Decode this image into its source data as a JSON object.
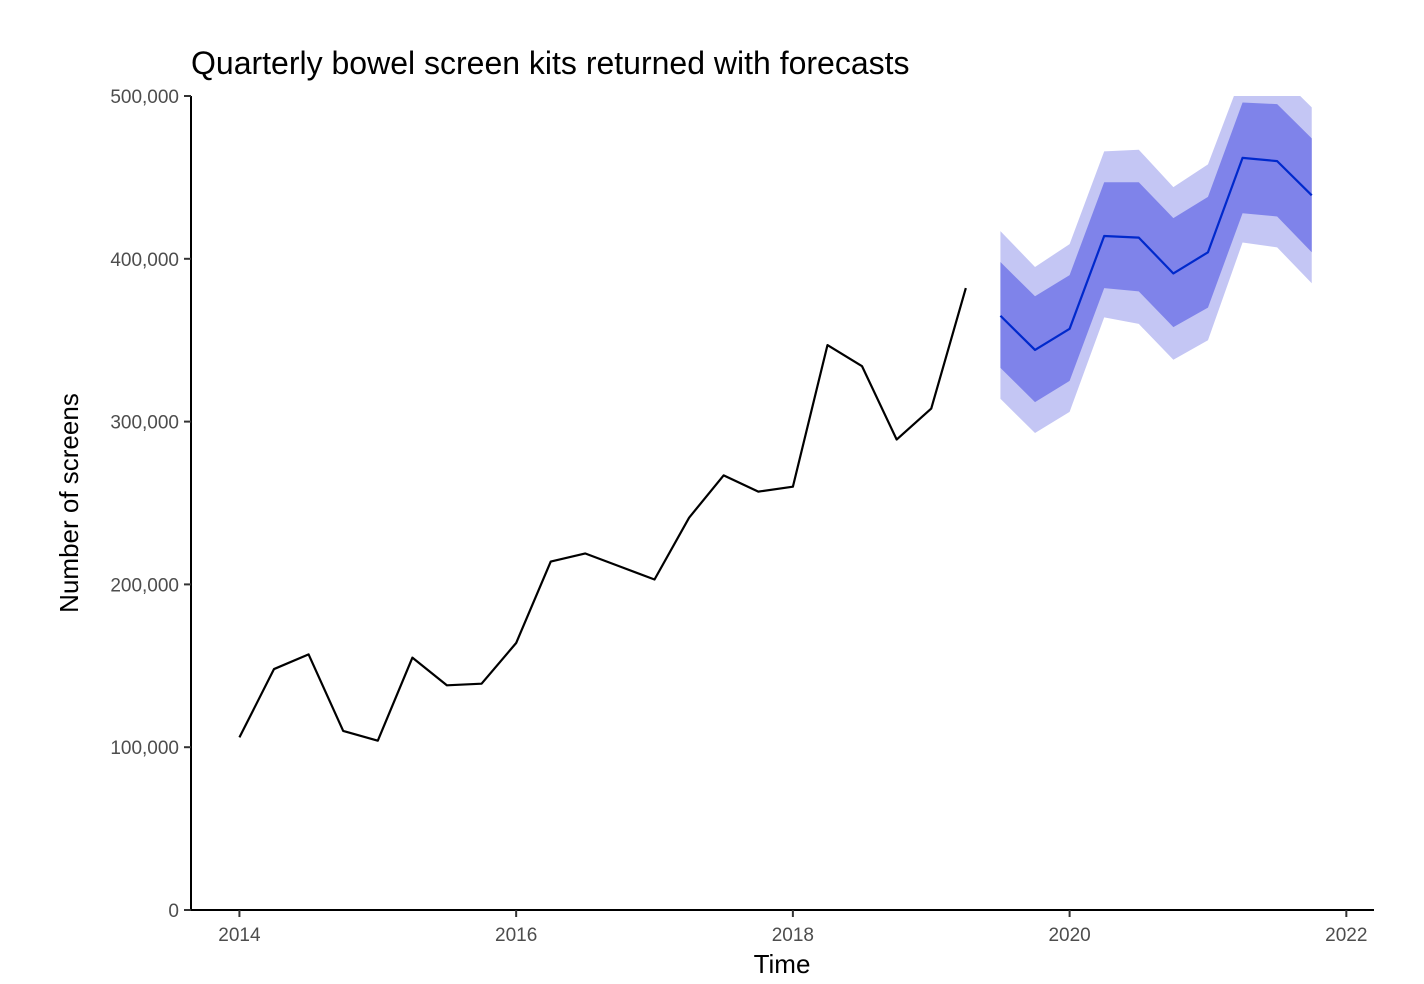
{
  "chart_data": {
    "type": "line",
    "title": "Quarterly bowel screen kits returned with forecasts",
    "xlabel": "Time",
    "ylabel": "Number of screens",
    "xlim": [
      2013.65,
      2022.2
    ],
    "ylim": [
      0,
      500000
    ],
    "x_ticks": [
      2014,
      2016,
      2018,
      2020,
      2022
    ],
    "x_tick_labels": [
      "2014",
      "2016",
      "2018",
      "2020",
      "2022"
    ],
    "y_ticks": [
      0,
      100000,
      200000,
      300000,
      400000,
      500000
    ],
    "y_tick_labels": [
      "0",
      "100,000",
      "200,000",
      "300,000",
      "400,000",
      "500,000"
    ],
    "grid": false,
    "legend": "none",
    "series": [
      {
        "role": "observed",
        "color": "#000000",
        "x": [
          2014.0,
          2014.25,
          2014.5,
          2014.75,
          2015.0,
          2015.25,
          2015.5,
          2015.75,
          2016.0,
          2016.25,
          2016.5,
          2016.75,
          2017.0,
          2017.25,
          2017.5,
          2017.75,
          2018.0,
          2018.25,
          2018.5,
          2018.75,
          2019.0,
          2019.25
        ],
        "values": [
          106000,
          148000,
          157000,
          110000,
          104000,
          155000,
          138000,
          139000,
          164000,
          214000,
          219000,
          211000,
          203000,
          241000,
          267000,
          257000,
          260000,
          347000,
          334000,
          289000,
          308000,
          382000
        ]
      },
      {
        "role": "forecast",
        "color": "#0029cc",
        "x": [
          2019.5,
          2019.75,
          2020.0,
          2020.25,
          2020.5,
          2020.75,
          2021.0,
          2021.25,
          2021.5,
          2021.75
        ],
        "values": [
          365000,
          344000,
          357000,
          414000,
          413000,
          391000,
          404000,
          462000,
          460000,
          439000
        ],
        "lo80": [
          333000,
          312000,
          325000,
          382000,
          380000,
          358000,
          370000,
          428000,
          426000,
          404000
        ],
        "hi80": [
          398000,
          377000,
          390000,
          447000,
          447000,
          425000,
          438000,
          496000,
          495000,
          474000
        ],
        "lo95": [
          314000,
          293000,
          306000,
          364000,
          360000,
          338000,
          350000,
          410000,
          407000,
          385000
        ],
        "hi95": [
          417000,
          395000,
          409000,
          466000,
          467000,
          444000,
          458000,
          514000,
          514000,
          493000
        ]
      }
    ],
    "band_colors": {
      "ci80": "#7f83ea",
      "ci95": "#c4c6f4"
    }
  }
}
